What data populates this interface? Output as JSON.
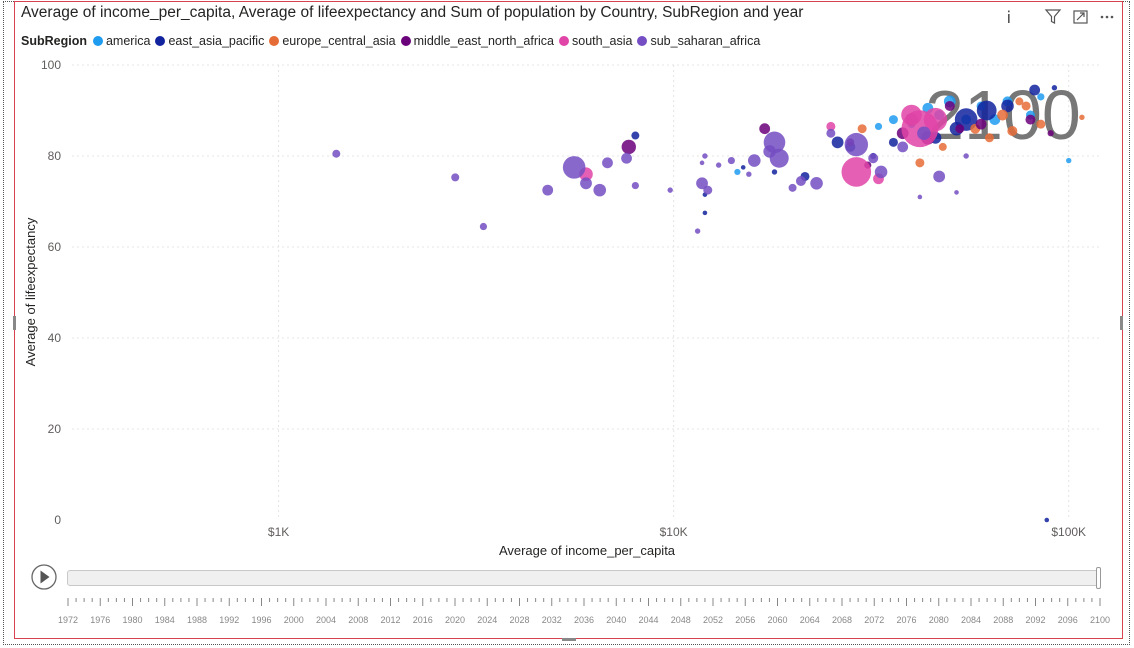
{
  "header": {
    "title": "Average of income_per_capita, Average of lifeexpectancy and Sum of population by Country, SubRegion and year",
    "icons": [
      "info-icon",
      "filter-icon",
      "focus-mode-icon",
      "more-options-icon"
    ]
  },
  "legend": {
    "title": "SubRegion",
    "items": [
      {
        "label": "america",
        "color": "#1f9bf0"
      },
      {
        "label": "east_asia_pacific",
        "color": "#12239e"
      },
      {
        "label": "europe_central_asia",
        "color": "#e66c37"
      },
      {
        "label": "middle_east_north_africa",
        "color": "#6b007b"
      },
      {
        "label": "south_asia",
        "color": "#e044a7"
      },
      {
        "label": "sub_saharan_africa",
        "color": "#744ec2"
      }
    ]
  },
  "chart_data": {
    "type": "scatter",
    "title": "Average of income_per_capita, Average of lifeexpectancy and Sum of population by Country, SubRegion and year",
    "xlabel": "Average of income_per_capita",
    "ylabel": "Average of lifeexpectancy",
    "x_scale": "log",
    "xlim": [
      300,
      120000
    ],
    "ylim": [
      0,
      100
    ],
    "x_ticks": [
      {
        "value": 1000,
        "label": "$1K"
      },
      {
        "value": 10000,
        "label": "$10K"
      },
      {
        "value": 100000,
        "label": "$100K"
      }
    ],
    "y_ticks": [
      0,
      20,
      40,
      60,
      80,
      100
    ],
    "grid": true,
    "watermark_year": "2100",
    "play_axis": {
      "labels": [
        "1972",
        "1976",
        "1980",
        "1984",
        "1988",
        "1992",
        "1996",
        "2000",
        "2004",
        "2008",
        "2012",
        "2016",
        "2020",
        "2024",
        "2028",
        "2032",
        "2036",
        "2040",
        "2044",
        "2048",
        "2052",
        "2056",
        "2060",
        "2064",
        "2068",
        "2072",
        "2076",
        "2080",
        "2084",
        "2088",
        "2092",
        "2096",
        "2100"
      ],
      "current": "2100"
    },
    "series": [
      {
        "name": "america",
        "points": [
          {
            "x": 14500,
            "y": 76.5,
            "s": 0.7
          },
          {
            "x": 36000,
            "y": 88,
            "s": 1
          },
          {
            "x": 40000,
            "y": 87,
            "s": 0.9
          },
          {
            "x": 44000,
            "y": 90.5,
            "s": 1.2
          },
          {
            "x": 47000,
            "y": 89,
            "s": 1.1
          },
          {
            "x": 50000,
            "y": 92,
            "s": 1.3
          },
          {
            "x": 55000,
            "y": 88,
            "s": 1.1
          },
          {
            "x": 60000,
            "y": 91,
            "s": 1
          },
          {
            "x": 65000,
            "y": 88,
            "s": 1.2
          },
          {
            "x": 70000,
            "y": 92,
            "s": 1.1
          },
          {
            "x": 80000,
            "y": 89,
            "s": 1
          },
          {
            "x": 85000,
            "y": 93,
            "s": 0.8
          },
          {
            "x": 100000,
            "y": 79,
            "s": 0.6
          },
          {
            "x": 33000,
            "y": 86.5,
            "s": 0.8
          }
        ]
      },
      {
        "name": "east_asia_pacific",
        "points": [
          {
            "x": 8000,
            "y": 84.5,
            "s": 0.9
          },
          {
            "x": 12000,
            "y": 67.5,
            "s": 0.5
          },
          {
            "x": 12000,
            "y": 71.5,
            "s": 0.5
          },
          {
            "x": 15000,
            "y": 77.5,
            "s": 0.5
          },
          {
            "x": 18000,
            "y": 76.5,
            "s": 0.6
          },
          {
            "x": 21500,
            "y": 75.5,
            "s": 1
          },
          {
            "x": 26000,
            "y": 83,
            "s": 1.3
          },
          {
            "x": 28000,
            "y": 82,
            "s": 1.1
          },
          {
            "x": 32000,
            "y": 80,
            "s": 0.7
          },
          {
            "x": 46000,
            "y": 84,
            "s": 1.3
          },
          {
            "x": 52000,
            "y": 86,
            "s": 1.5
          },
          {
            "x": 55000,
            "y": 88,
            "s": 2.5
          },
          {
            "x": 62000,
            "y": 90,
            "s": 2.2
          },
          {
            "x": 70000,
            "y": 91,
            "s": 1.4
          },
          {
            "x": 82000,
            "y": 94.5,
            "s": 1.2
          },
          {
            "x": 92000,
            "y": 95,
            "s": 0.6
          },
          {
            "x": 88000,
            "y": 0,
            "s": 0.5
          },
          {
            "x": 36000,
            "y": 83,
            "s": 1
          }
        ]
      },
      {
        "name": "europe_central_asia",
        "points": [
          {
            "x": 30000,
            "y": 86,
            "s": 1
          },
          {
            "x": 42000,
            "y": 78.5,
            "s": 1
          },
          {
            "x": 48000,
            "y": 82,
            "s": 0.9
          },
          {
            "x": 58000,
            "y": 86,
            "s": 1.1
          },
          {
            "x": 63000,
            "y": 84,
            "s": 1
          },
          {
            "x": 68000,
            "y": 89,
            "s": 1.2
          },
          {
            "x": 72000,
            "y": 85.5,
            "s": 1.1
          },
          {
            "x": 78000,
            "y": 91,
            "s": 1
          },
          {
            "x": 85000,
            "y": 87,
            "s": 1
          },
          {
            "x": 108000,
            "y": 88.5,
            "s": 0.6
          },
          {
            "x": 75000,
            "y": 92,
            "s": 0.9
          }
        ]
      },
      {
        "name": "middle_east_north_africa",
        "points": [
          {
            "x": 7700,
            "y": 82,
            "s": 1.6
          },
          {
            "x": 17000,
            "y": 86,
            "s": 1.2
          },
          {
            "x": 28000,
            "y": 83,
            "s": 0.9
          },
          {
            "x": 31000,
            "y": 78,
            "s": 0.8
          },
          {
            "x": 38000,
            "y": 85,
            "s": 1.3
          },
          {
            "x": 40000,
            "y": 88,
            "s": 1.4
          },
          {
            "x": 44000,
            "y": 84,
            "s": 1.5
          },
          {
            "x": 50000,
            "y": 91,
            "s": 1.1
          },
          {
            "x": 53000,
            "y": 86,
            "s": 1
          },
          {
            "x": 60000,
            "y": 87,
            "s": 1.2
          },
          {
            "x": 80000,
            "y": 88,
            "s": 1.1
          },
          {
            "x": 90000,
            "y": 85,
            "s": 0.7
          }
        ]
      },
      {
        "name": "south_asia",
        "points": [
          {
            "x": 6000,
            "y": 76,
            "s": 1.5
          },
          {
            "x": 25000,
            "y": 86.5,
            "s": 1
          },
          {
            "x": 29000,
            "y": 76.5,
            "s": 3.3
          },
          {
            "x": 40000,
            "y": 89,
            "s": 2.3
          },
          {
            "x": 42000,
            "y": 86,
            "s": 4.1
          },
          {
            "x": 46000,
            "y": 88,
            "s": 2.6
          },
          {
            "x": 33000,
            "y": 75,
            "s": 1.2
          }
        ]
      },
      {
        "name": "sub_saharan_africa",
        "points": [
          {
            "x": 1400,
            "y": 80.5,
            "s": 0.9
          },
          {
            "x": 2800,
            "y": 75.3,
            "s": 0.9
          },
          {
            "x": 3300,
            "y": 64.5,
            "s": 0.8
          },
          {
            "x": 4800,
            "y": 72.5,
            "s": 1.2
          },
          {
            "x": 5600,
            "y": 77.5,
            "s": 2.5
          },
          {
            "x": 6000,
            "y": 74,
            "s": 1.3
          },
          {
            "x": 6500,
            "y": 72.5,
            "s": 1.4
          },
          {
            "x": 6800,
            "y": 78.5,
            "s": 1.2
          },
          {
            "x": 7600,
            "y": 79.5,
            "s": 1.2
          },
          {
            "x": 8000,
            "y": 73.5,
            "s": 0.8
          },
          {
            "x": 9800,
            "y": 72.5,
            "s": 0.6
          },
          {
            "x": 11500,
            "y": 63.5,
            "s": 0.6
          },
          {
            "x": 11800,
            "y": 74,
            "s": 1.3
          },
          {
            "x": 12200,
            "y": 72.5,
            "s": 1
          },
          {
            "x": 13000,
            "y": 78,
            "s": 0.6
          },
          {
            "x": 14000,
            "y": 79,
            "s": 0.8
          },
          {
            "x": 15500,
            "y": 76,
            "s": 0.6
          },
          {
            "x": 16000,
            "y": 79,
            "s": 1.4
          },
          {
            "x": 17500,
            "y": 81,
            "s": 1.4
          },
          {
            "x": 18000,
            "y": 83,
            "s": 2.4
          },
          {
            "x": 18500,
            "y": 79.5,
            "s": 2.1
          },
          {
            "x": 20000,
            "y": 73,
            "s": 0.9
          },
          {
            "x": 21000,
            "y": 74.5,
            "s": 1.1
          },
          {
            "x": 23000,
            "y": 74,
            "s": 1.4
          },
          {
            "x": 25000,
            "y": 85,
            "s": 1
          },
          {
            "x": 29000,
            "y": 82.5,
            "s": 2.6
          },
          {
            "x": 32000,
            "y": 79.5,
            "s": 1.1
          },
          {
            "x": 33500,
            "y": 76.5,
            "s": 1.4
          },
          {
            "x": 42000,
            "y": 71,
            "s": 0.5
          },
          {
            "x": 47000,
            "y": 75.5,
            "s": 1.3
          },
          {
            "x": 52000,
            "y": 72,
            "s": 0.5
          },
          {
            "x": 55000,
            "y": 80,
            "s": 0.6
          },
          {
            "x": 38000,
            "y": 82,
            "s": 1.2
          },
          {
            "x": 43000,
            "y": 85,
            "s": 1.5
          },
          {
            "x": 12000,
            "y": 80,
            "s": 0.6
          },
          {
            "x": 11800,
            "y": 78.5,
            "s": 0.5
          }
        ]
      }
    ]
  }
}
